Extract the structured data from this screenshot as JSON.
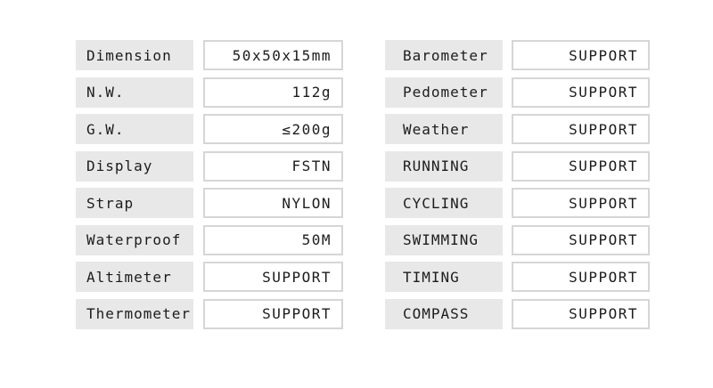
{
  "colors": {
    "page_background": "#ffffff",
    "label_background": "#e8e8e8",
    "value_border": "#d6d6d6",
    "text": "#1c1c1c"
  },
  "spec_table": {
    "left_column": [
      {
        "label": "Dimension",
        "value": "50x50x15mm"
      },
      {
        "label": "N.W.",
        "value": "112g"
      },
      {
        "label": "G.W.",
        "value": "≤200g"
      },
      {
        "label": "Display",
        "value": "FSTN"
      },
      {
        "label": "Strap",
        "value": "NYLON"
      },
      {
        "label": "Waterproof",
        "value": "50M"
      },
      {
        "label": "Altimeter",
        "value": "SUPPORT"
      },
      {
        "label": "Thermometer",
        "value": "SUPPORT"
      }
    ],
    "right_column": [
      {
        "label": "Barometer",
        "value": "SUPPORT"
      },
      {
        "label": "Pedometer",
        "value": "SUPPORT"
      },
      {
        "label": "Weather",
        "value": "SUPPORT"
      },
      {
        "label": "RUNNING",
        "value": "SUPPORT"
      },
      {
        "label": "CYCLING",
        "value": "SUPPORT"
      },
      {
        "label": "SWIMMING",
        "value": "SUPPORT"
      },
      {
        "label": "TIMING",
        "value": "SUPPORT"
      },
      {
        "label": "COMPASS",
        "value": "SUPPORT"
      }
    ]
  }
}
